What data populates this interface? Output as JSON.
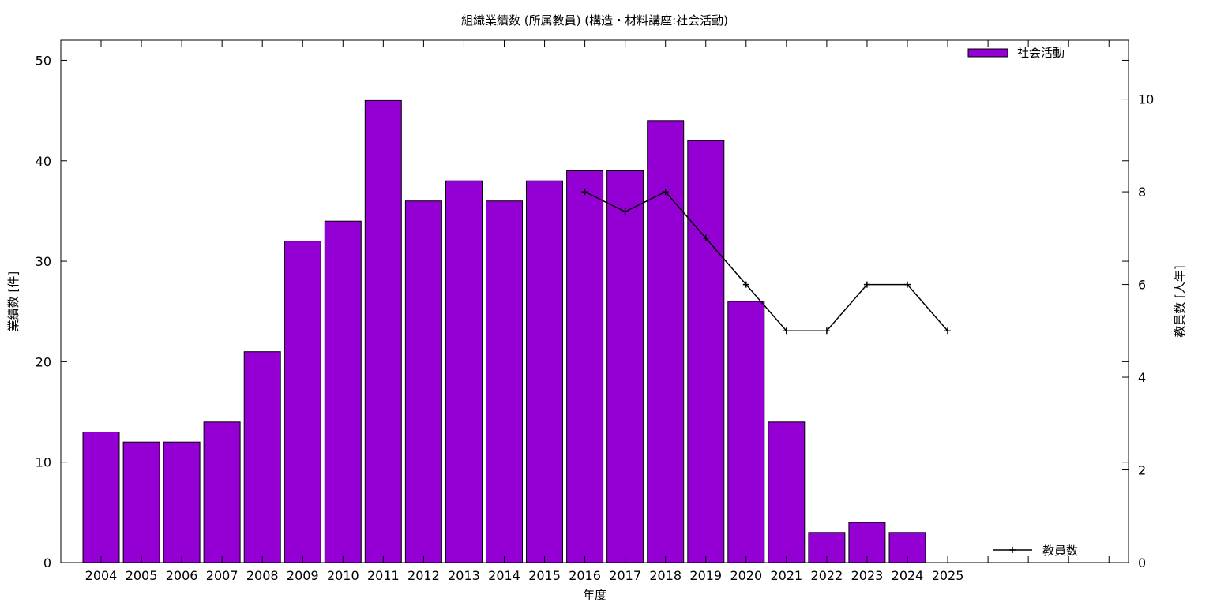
{
  "chart_data": {
    "type": "bar",
    "title": "組織業績数 (所属教員) (構造・材料講座:社会活動)",
    "xlabel": "年度",
    "ylabel": "業績数 [件]",
    "y2label": "教員数 [人年]",
    "categories": [
      "2004",
      "2005",
      "2006",
      "2007",
      "2008",
      "2009",
      "2010",
      "2011",
      "2012",
      "2013",
      "2014",
      "2015",
      "2016",
      "2017",
      "2018",
      "2019",
      "2020",
      "2021",
      "2022",
      "2023",
      "2024",
      "2025"
    ],
    "ylim": [
      0,
      52
    ],
    "y2lim": [
      0,
      11.27
    ],
    "yticks": [
      0,
      10,
      20,
      30,
      40,
      50
    ],
    "y2ticks": [
      0,
      2,
      4,
      6,
      8,
      10
    ],
    "grid": false,
    "series": [
      {
        "name": "社会活動",
        "type": "bar",
        "axis": "left",
        "color": "#9400d3",
        "values": [
          13,
          12,
          12,
          14,
          21,
          32,
          34,
          46,
          36,
          38,
          36,
          38,
          39,
          39,
          44,
          42,
          26,
          14,
          3,
          4,
          3,
          null
        ]
      },
      {
        "name": "教員数",
        "type": "line",
        "axis": "right",
        "color": "#000000",
        "values": [
          null,
          null,
          null,
          null,
          null,
          null,
          null,
          null,
          null,
          null,
          null,
          null,
          8,
          7.57,
          8,
          7,
          6,
          5,
          5,
          6,
          6,
          5
        ]
      }
    ],
    "legend": [
      {
        "label": "社会活動",
        "position": "top-right"
      },
      {
        "label": "教員数",
        "position": "bottom-right"
      }
    ]
  }
}
